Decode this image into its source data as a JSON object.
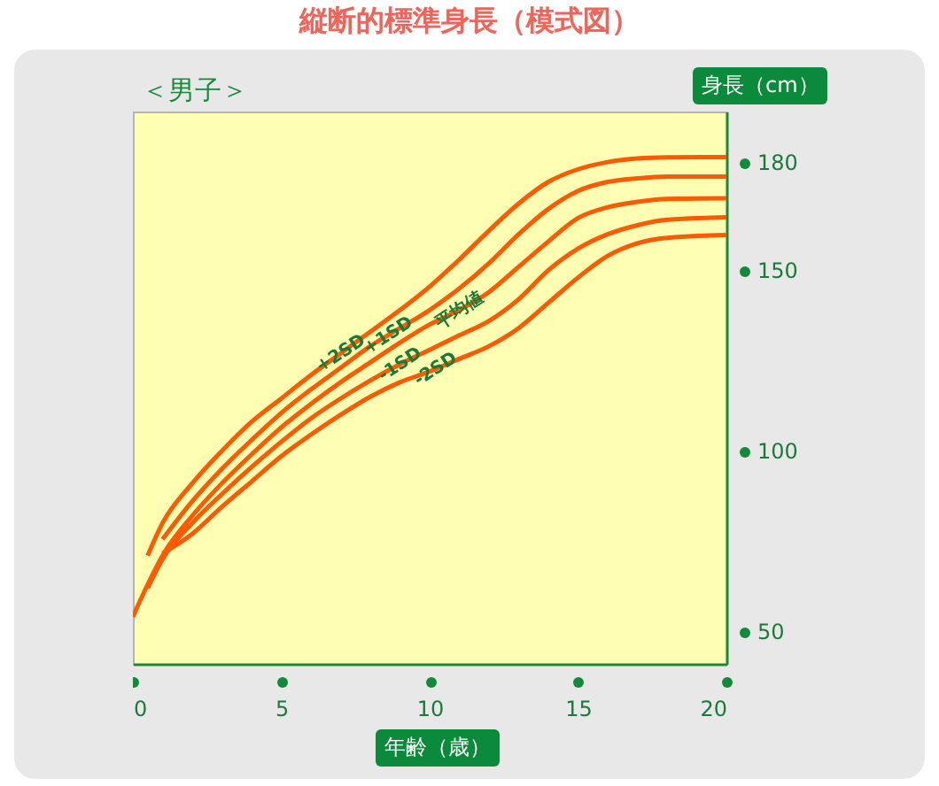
{
  "chart_data": {
    "type": "line",
    "title": "縦断的標準身長（模式図）",
    "subtitle": "＜男子＞",
    "xlabel": "年齢（歳）",
    "ylabel": "身長（cm）",
    "x": [
      0,
      0.5,
      1,
      2,
      3,
      4,
      5,
      6,
      7,
      8,
      9,
      10,
      11,
      12,
      13,
      14,
      15,
      16,
      17,
      18,
      20
    ],
    "series": [
      {
        "name": "+2SD",
        "color": "#ff5a00",
        "values": [
          null,
          71,
          80,
          91,
          100,
          108,
          114.5,
          121,
          127,
          133,
          139,
          145.5,
          153,
          161,
          168.5,
          174.5,
          178,
          180,
          181,
          181.3,
          181.4
        ]
      },
      {
        "name": "+1SD",
        "color": "#ff5a00",
        "values": [
          null,
          null,
          75.5,
          86,
          95,
          103,
          110.5,
          117,
          123,
          129,
          134,
          139,
          145,
          152,
          160,
          167,
          172,
          174.5,
          175.5,
          176,
          176
        ]
      },
      {
        "name": "平均値",
        "color": "#ff5a00",
        "values": [
          54,
          63,
          71,
          82,
          91,
          99,
          106.5,
          113,
          119,
          124.5,
          130,
          135,
          139,
          144,
          151,
          158,
          164.5,
          167.5,
          169,
          169.8,
          170
        ]
      },
      {
        "name": "-1SD",
        "color": "#ff5a00",
        "values": [
          null,
          62,
          70,
          80,
          88,
          95.5,
          102.5,
          109,
          114.5,
          119.5,
          124,
          128,
          132,
          136,
          142,
          150,
          156,
          160,
          162.5,
          164,
          164.7
        ]
      },
      {
        "name": "-2SD",
        "color": "#ff5a00",
        "values": [
          null,
          null,
          71.6,
          77,
          84.5,
          91.5,
          98.5,
          104.5,
          110,
          115,
          119,
          122,
          125.5,
          129,
          134,
          141,
          148,
          154,
          157.5,
          159,
          159.8
        ]
      }
    ],
    "xlim": [
      0,
      20
    ],
    "ylim": [
      41,
      194
    ],
    "xticks": [
      0,
      5,
      10,
      15,
      20
    ],
    "yticks": [
      50,
      100,
      150,
      180
    ]
  }
}
